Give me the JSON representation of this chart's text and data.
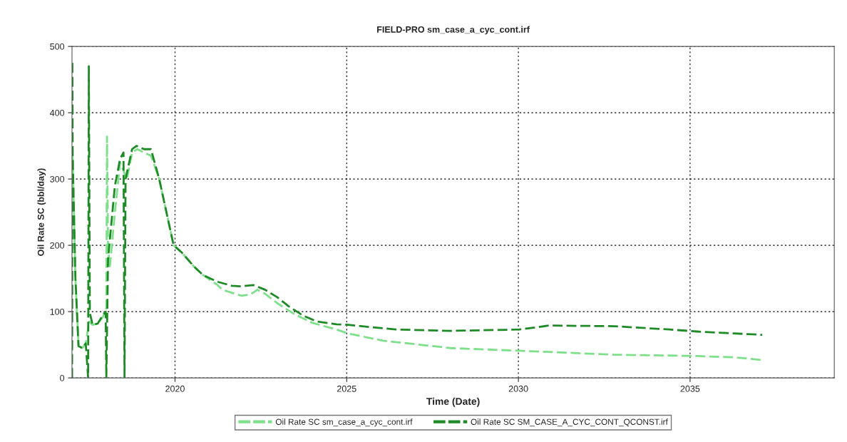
{
  "chart_data": {
    "type": "line",
    "title": "FIELD-PRO sm_case_a_cyc_cont.irf",
    "xlabel": "Time (Date)",
    "ylabel": "Oil Rate SC (bbl/day)",
    "xlim": [
      2017,
      2039.2
    ],
    "xticks": [
      2020,
      2025,
      2030,
      2035
    ],
    "ylim": [
      0,
      500
    ],
    "yticks": [
      0,
      100,
      200,
      300,
      400,
      500
    ],
    "grid": true,
    "legend": "bottom",
    "line_style": "dashed",
    "marker": "none",
    "series": [
      {
        "name": "Oil Rate SC sm_case_a_cyc_cont.irf",
        "color": "#7ee08a",
        "x": [
          2017.0,
          2017.02,
          2017.1,
          2017.19,
          2017.3,
          2017.4,
          2017.5,
          2017.6,
          2017.75,
          2017.9,
          2018.0,
          2018.02,
          2018.05,
          2018.1,
          2018.25,
          2018.4,
          2018.6,
          2018.75,
          2018.9,
          2019.1,
          2019.3,
          2019.54,
          2019.96,
          2020.2,
          2020.55,
          2020.82,
          2021.24,
          2021.38,
          2021.93,
          2022.2,
          2022.4,
          2022.62,
          2022.97,
          2023.45,
          2024.0,
          2024.7,
          2025.04,
          2026.08,
          2028.03,
          2030.02,
          2032.8,
          2035.2,
          2036.3,
          2037.1
        ],
        "values": [
          0,
          335,
          150,
          48,
          45,
          52,
          85,
          80,
          82,
          92,
          105,
          364,
          200,
          166,
          250,
          325,
          300,
          340,
          345,
          340,
          335,
          300,
          200,
          189,
          168,
          155,
          140,
          133,
          124,
          126,
          133,
          127,
          113,
          97,
          83,
          73,
          67,
          56,
          45,
          41,
          35,
          33,
          31,
          27
        ]
      },
      {
        "name": "Oil Rate SC SM_CASE_A_CYC_CONT_QCONST.irf",
        "color": "#1e8a26",
        "x": [
          2017.0,
          2017.01,
          2017.02,
          2017.1,
          2017.19,
          2017.3,
          2017.4,
          2017.47,
          2017.49,
          2017.52,
          2017.6,
          2017.75,
          2017.9,
          2017.98,
          2018.0,
          2018.05,
          2018.25,
          2018.4,
          2018.5,
          2018.53,
          2018.56,
          2018.75,
          2018.88,
          2019.1,
          2019.3,
          2019.54,
          2019.96,
          2020.2,
          2020.55,
          2020.82,
          2021.24,
          2021.65,
          2021.93,
          2022.28,
          2022.62,
          2022.97,
          2023.31,
          2023.73,
          2024.14,
          2024.7,
          2025.04,
          2026.43,
          2028.03,
          2030.02,
          2030.9,
          2032.8,
          2034.4,
          2035.2,
          2037.1
        ],
        "values": [
          0,
          478,
          335,
          150,
          48,
          45,
          52,
          0,
          470,
          98,
          80,
          82,
          95,
          100,
          0,
          180,
          290,
          330,
          340,
          0,
          300,
          345,
          350,
          345,
          345,
          300,
          200,
          189,
          168,
          155,
          145,
          139,
          138,
          140,
          133,
          122,
          108,
          94,
          85,
          81,
          80,
          73,
          71,
          73,
          79,
          78,
          73,
          70,
          65
        ]
      }
    ]
  }
}
